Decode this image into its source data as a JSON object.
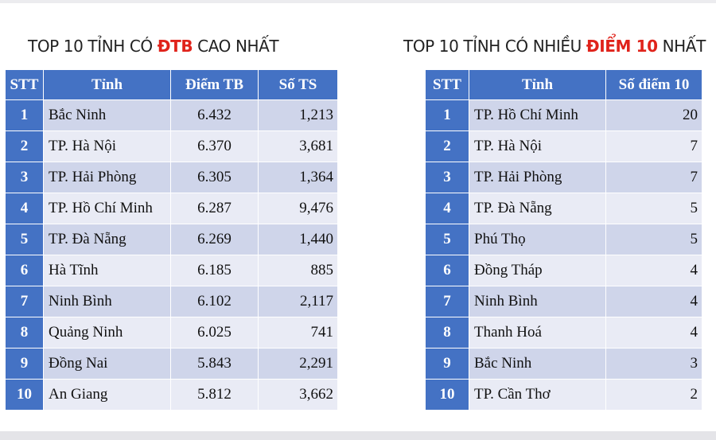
{
  "left": {
    "heading_pre": "TOP 10 TỈNH CÓ ",
    "heading_hl": "ĐTB",
    "heading_post": " CAO NHẤT",
    "columns": [
      "STT",
      "Tỉnh",
      "Điểm TB",
      "Số TS"
    ],
    "rows": [
      {
        "stt": "1",
        "tinh": "Bắc Ninh",
        "diem_tb": "6.432",
        "so_ts": "1,213"
      },
      {
        "stt": "2",
        "tinh": "TP. Hà Nội",
        "diem_tb": "6.370",
        "so_ts": "3,681"
      },
      {
        "stt": "3",
        "tinh": "TP. Hải Phòng",
        "diem_tb": "6.305",
        "so_ts": "1,364"
      },
      {
        "stt": "4",
        "tinh": "TP. Hồ Chí Minh",
        "diem_tb": "6.287",
        "so_ts": "9,476"
      },
      {
        "stt": "5",
        "tinh": "TP. Đà Nẵng",
        "diem_tb": "6.269",
        "so_ts": "1,440"
      },
      {
        "stt": "6",
        "tinh": "Hà Tĩnh",
        "diem_tb": "6.185",
        "so_ts": "885"
      },
      {
        "stt": "7",
        "tinh": "Ninh Bình",
        "diem_tb": "6.102",
        "so_ts": "2,117"
      },
      {
        "stt": "8",
        "tinh": "Quảng Ninh",
        "diem_tb": "6.025",
        "so_ts": "741"
      },
      {
        "stt": "9",
        "tinh": "Đồng Nai",
        "diem_tb": "5.843",
        "so_ts": "2,291"
      },
      {
        "stt": "10",
        "tinh": "An Giang",
        "diem_tb": "5.812",
        "so_ts": "3,662"
      }
    ]
  },
  "right": {
    "heading_pre": "TOP 10 TỈNH CÓ NHIỀU ",
    "heading_hl": "ĐIỂM 10",
    "heading_post": " NHẤT",
    "columns": [
      "STT",
      "Tỉnh",
      "Số điểm 10"
    ],
    "rows": [
      {
        "stt": "1",
        "tinh": "TP. Hồ Chí Minh",
        "so_diem_10": "20"
      },
      {
        "stt": "2",
        "tinh": "TP. Hà Nội",
        "so_diem_10": "7"
      },
      {
        "stt": "3",
        "tinh": "TP. Hải Phòng",
        "so_diem_10": "7"
      },
      {
        "stt": "4",
        "tinh": "TP. Đà Nẵng",
        "so_diem_10": "5"
      },
      {
        "stt": "5",
        "tinh": "Phú Thọ",
        "so_diem_10": "5"
      },
      {
        "stt": "6",
        "tinh": "Đồng Tháp",
        "so_diem_10": "4"
      },
      {
        "stt": "7",
        "tinh": "Ninh Bình",
        "so_diem_10": "4"
      },
      {
        "stt": "8",
        "tinh": "Thanh Hoá",
        "so_diem_10": "4"
      },
      {
        "stt": "9",
        "tinh": "Bắc Ninh",
        "so_diem_10": "3"
      },
      {
        "stt": "10",
        "tinh": "TP. Cần Thơ",
        "so_diem_10": "2"
      }
    ]
  },
  "colors": {
    "header_blue": "#4472c4",
    "row_dark": "#cfd5ea",
    "row_light": "#e9ebf5",
    "highlight_red": "#e0231b"
  }
}
